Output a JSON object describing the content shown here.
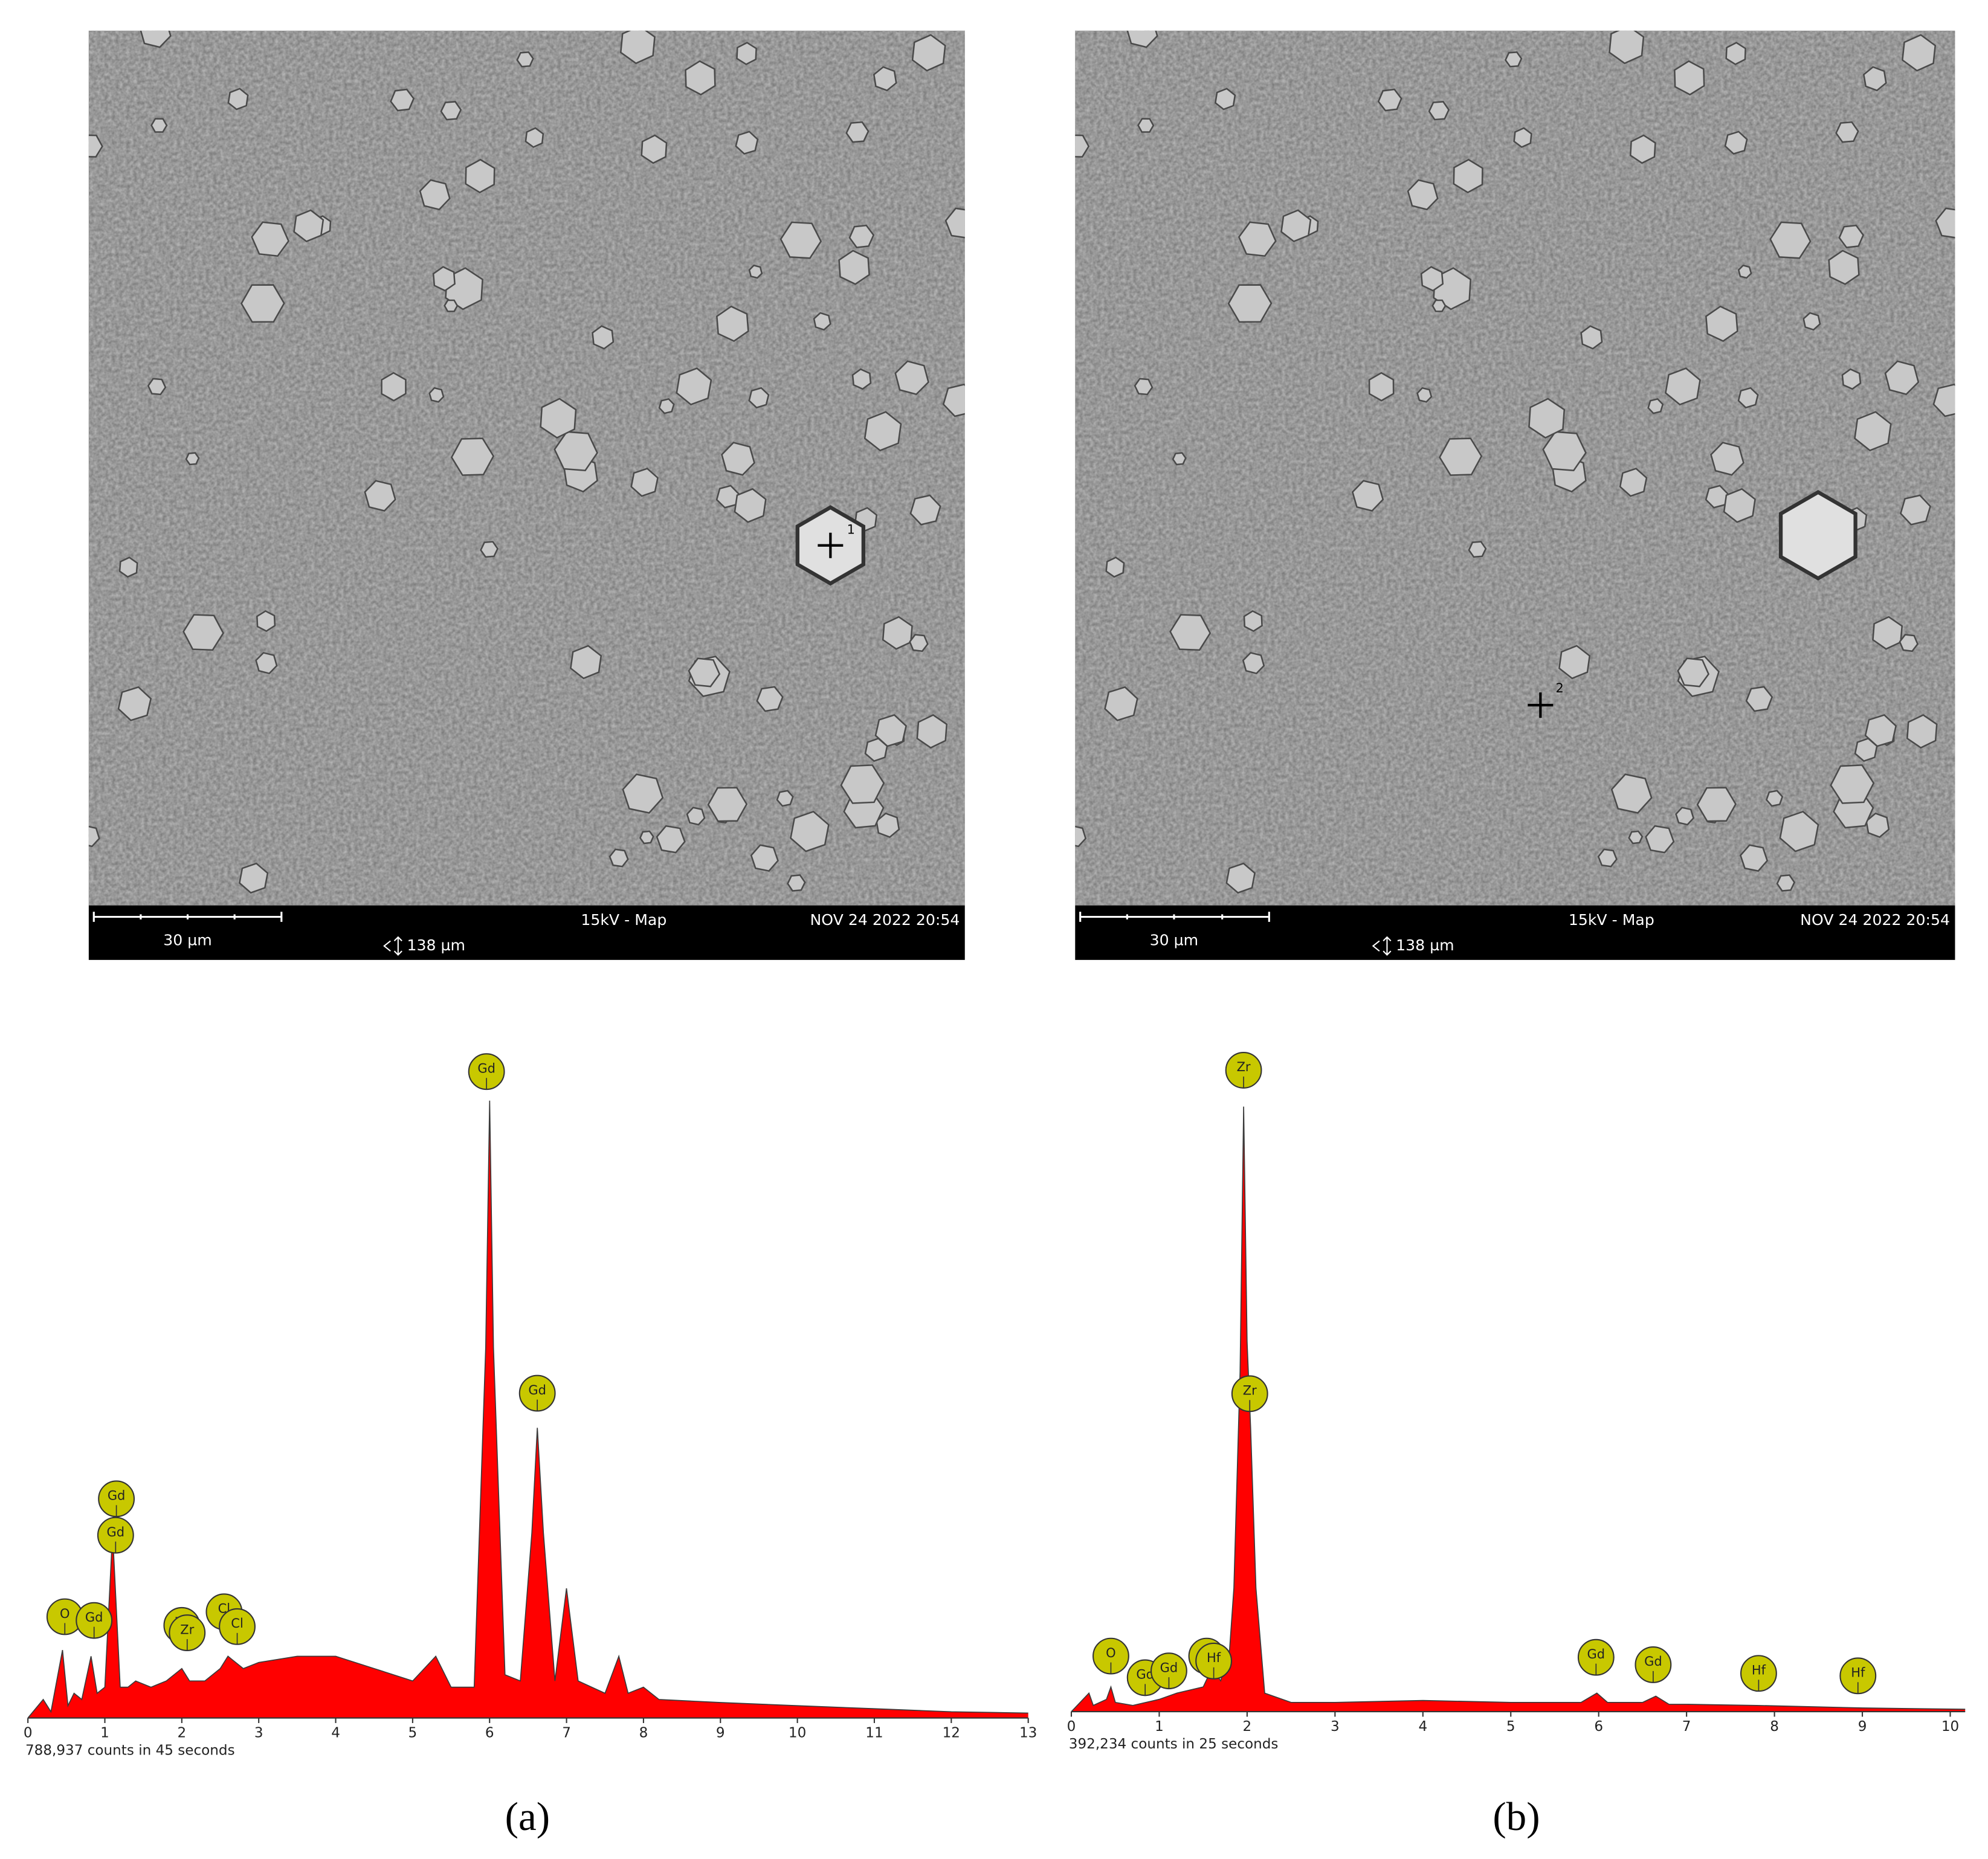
{
  "images": [
    {
      "scale_bar": "30 µm",
      "mode": "15kV - Map",
      "timestamp": "NOV 24 2022 20:54",
      "field_width": "138 µm",
      "point_label": "1"
    },
    {
      "scale_bar": "30 µm",
      "mode": "15kV - Map",
      "timestamp": "NOV 24 2022 20:54",
      "field_width": "138 µm",
      "point_label": "2"
    }
  ],
  "panel_labels": [
    "(a)",
    "(b)"
  ],
  "chart_data": [
    {
      "type": "area",
      "color": "#ff0000",
      "line_color": "#3a3a3a",
      "x": [
        0,
        0.2,
        0.3,
        0.45,
        0.52,
        0.6,
        0.7,
        0.82,
        0.9,
        1.0,
        1.1,
        1.2,
        1.3,
        1.4,
        1.6,
        1.8,
        2.0,
        2.1,
        2.3,
        2.5,
        2.6,
        2.8,
        3.0,
        3.5,
        4.0,
        4.5,
        5.0,
        5.3,
        5.5,
        5.8,
        5.95,
        6.0,
        6.05,
        6.2,
        6.4,
        6.55,
        6.62,
        6.7,
        6.85,
        7.0,
        7.15,
        7.5,
        7.68,
        7.8,
        8.0,
        8.2,
        9,
        10,
        11,
        12,
        13
      ],
      "values": [
        0,
        3,
        1,
        11,
        2,
        4,
        3,
        10,
        4,
        5,
        30,
        5,
        5,
        6,
        5,
        6,
        8,
        6,
        6,
        8,
        10,
        8,
        9,
        10,
        10,
        8,
        6,
        10,
        5,
        5,
        60,
        100,
        60,
        7,
        6,
        30,
        47,
        30,
        6,
        21,
        6,
        4,
        10,
        4,
        5,
        3,
        2.5,
        2,
        1.5,
        1,
        0.8
      ],
      "xlim": [
        0,
        13
      ],
      "xticks": [
        0,
        1,
        2,
        3,
        4,
        5,
        6,
        7,
        8,
        9,
        10,
        11,
        12,
        13
      ],
      "ylim": [
        0,
        100
      ],
      "footer": "788,937 counts in 45 seconds",
      "peak_labels": [
        {
          "text": "O",
          "x": 0.48,
          "y": 16.4
        },
        {
          "text": "Gd",
          "x": 0.86,
          "y": 15.8
        },
        {
          "text": "Gd",
          "x": 1.15,
          "y": 35.5
        },
        {
          "text": "Gd",
          "x": 1.14,
          "y": 29.6
        },
        {
          "text": "Zr",
          "x": 2.0,
          "y": 15
        },
        {
          "text": "Zr",
          "x": 2.07,
          "y": 13.8
        },
        {
          "text": "Cl",
          "x": 2.55,
          "y": 17.2
        },
        {
          "text": "Cl",
          "x": 2.72,
          "y": 14.8
        },
        {
          "text": "Gd",
          "x": 5.96,
          "y": 104.7
        },
        {
          "text": "Gd",
          "x": 6.62,
          "y": 52.6
        }
      ]
    },
    {
      "type": "area",
      "color": "#ff0000",
      "line_color": "#3a3a3a",
      "x": [
        0,
        0.2,
        0.25,
        0.4,
        0.45,
        0.5,
        0.7,
        1.0,
        1.2,
        1.5,
        1.6,
        1.7,
        1.8,
        1.85,
        1.92,
        1.96,
        2.0,
        2.04,
        2.1,
        2.2,
        2.5,
        3,
        4,
        5,
        5.8,
        5.98,
        6.1,
        6.5,
        6.65,
        6.8,
        7.0,
        7.8,
        9,
        10.17
      ],
      "values": [
        0,
        3,
        1,
        2,
        4,
        1.5,
        1,
        2,
        3,
        4,
        7,
        5,
        10,
        20,
        55,
        98,
        60,
        46,
        20,
        3,
        1.5,
        1.5,
        1.8,
        1.5,
        1.5,
        3,
        1.5,
        1.5,
        2.5,
        1.2,
        1.2,
        1,
        0.6,
        0.4
      ],
      "xlim": [
        0,
        10.17
      ],
      "xticks": [
        0,
        1,
        2,
        3,
        4,
        5,
        6,
        7,
        8,
        9,
        10
      ],
      "ylim": [
        0,
        100
      ],
      "footer": "392,234 counts in 25 seconds",
      "peak_labels": [
        {
          "text": "O",
          "x": 0.45,
          "y": 9
        },
        {
          "text": "Gd",
          "x": 0.84,
          "y": 5.5
        },
        {
          "text": "Gd",
          "x": 1.11,
          "y": 6.6
        },
        {
          "text": "Gd",
          "x": 1.54,
          "y": 9
        },
        {
          "text": "Hf",
          "x": 1.62,
          "y": 8.2
        },
        {
          "text": "Zr",
          "x": 1.96,
          "y": 103.9
        },
        {
          "text": "Zr",
          "x": 2.03,
          "y": 51.5
        },
        {
          "text": "Gd",
          "x": 5.97,
          "y": 8.8
        },
        {
          "text": "Gd",
          "x": 6.62,
          "y": 7.6
        },
        {
          "text": "Hf",
          "x": 7.82,
          "y": 6.2
        },
        {
          "text": "Hf",
          "x": 8.95,
          "y": 5.8
        }
      ]
    }
  ]
}
